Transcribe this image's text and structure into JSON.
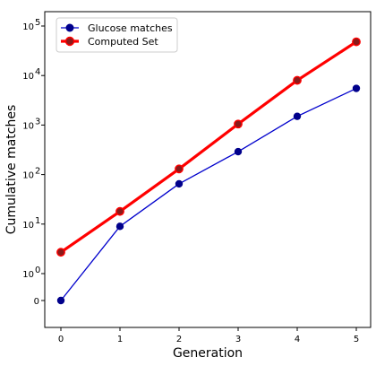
{
  "chart_data": {
    "type": "line",
    "xlabel": "Generation",
    "ylabel": "Cumulative matches",
    "yscale": "symlog",
    "x": [
      0,
      1,
      2,
      3,
      4,
      5
    ],
    "xticks": [
      "0",
      "1",
      "2",
      "3",
      "4",
      "5"
    ],
    "yticks": [
      {
        "value": 0,
        "base": "0",
        "exp": ""
      },
      {
        "value": 1,
        "base": "10",
        "exp": "0"
      },
      {
        "value": 10,
        "base": "10",
        "exp": "1"
      },
      {
        "value": 100,
        "base": "10",
        "exp": "2"
      },
      {
        "value": 1000,
        "base": "10",
        "exp": "3"
      },
      {
        "value": 10000,
        "base": "10",
        "exp": "4"
      },
      {
        "value": 100000,
        "base": "10",
        "exp": "5"
      }
    ],
    "series": [
      {
        "name": "Glucose matches",
        "values": [
          0,
          9,
          65,
          290,
          1500,
          5500
        ],
        "color": "#0000cc",
        "marker_color": "#00008b"
      },
      {
        "name": "Computed Set",
        "values": [
          2.7,
          18,
          130,
          1050,
          8000,
          48000
        ],
        "color": "#ff0000",
        "marker_color": "#8b1a1a"
      }
    ],
    "legend_position": "top-left",
    "grid": false
  }
}
